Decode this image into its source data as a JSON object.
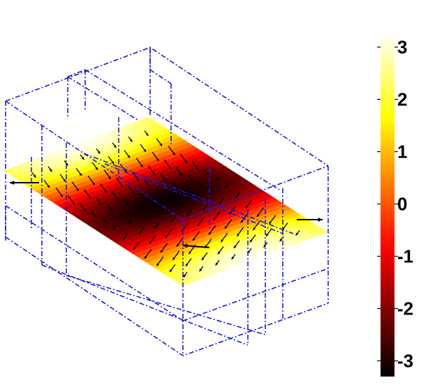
{
  "chart_data": {
    "type": "heatmap",
    "title": "",
    "xlabel": "",
    "ylabel": "",
    "colormap": "hot",
    "grid": false,
    "projection": "3d-oblique",
    "colorbar": {
      "position": "right",
      "clim": [
        -3.3,
        3.3
      ],
      "ticks": [
        {
          "value": 3,
          "label": "3"
        },
        {
          "value": 2,
          "label": "2"
        },
        {
          "value": 1,
          "label": "1"
        },
        {
          "value": 0,
          "label": "0"
        },
        {
          "value": -1,
          "label": "-1"
        },
        {
          "value": -2,
          "label": "-2"
        },
        {
          "value": -3,
          "label": "-3"
        }
      ]
    },
    "field_description": "wave field on a horizontal slice plane: bright bands (about +3) near the left and right ends, dark band (about -3) running across the middle, with a quiver overlay of small black arrows",
    "wireframe_color": "#1a1ad6",
    "wireframe_style": "dash-dot"
  }
}
